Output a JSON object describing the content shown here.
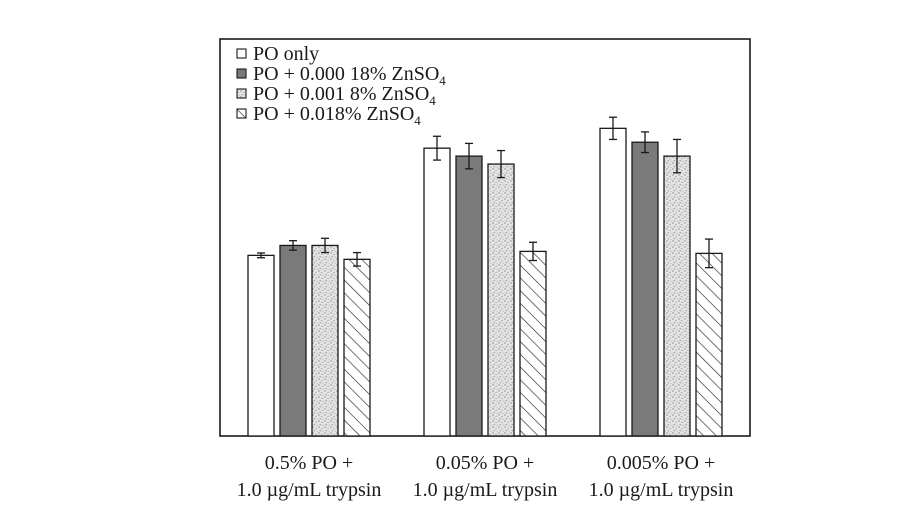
{
  "chart_data": {
    "type": "bar",
    "title": "",
    "xlabel": "",
    "ylabel": "",
    "ylim": [
      0,
      100
    ],
    "grid": false,
    "legend_placement": "top-left",
    "categories": [
      [
        "0.5% PO +",
        "1.0 µg/mL trypsin"
      ],
      [
        "0.05% PO +",
        "1.0 µg/mL trypsin"
      ],
      [
        "0.005% PO +",
        "1.0 µg/mL trypsin"
      ]
    ],
    "series": [
      {
        "name": "PO only",
        "legend_main": "PO only",
        "legend_sub": "",
        "legend_tail": "",
        "fill": "white",
        "values": [
          45.5,
          72.5,
          77.5
        ],
        "errors": [
          0.6,
          3.0,
          2.8
        ]
      },
      {
        "name": "PO + 0.000 18% ZnSO4",
        "legend_main": "PO + 0.000 18% ZnSO",
        "legend_sub": "4",
        "legend_tail": "",
        "fill": "gray",
        "values": [
          48.0,
          70.5,
          74.0
        ],
        "errors": [
          1.2,
          3.2,
          2.6
        ]
      },
      {
        "name": "PO + 0.001 8% ZnSO4",
        "legend_main": "PO + 0.001 8% ZnSO",
        "legend_sub": "4",
        "legend_tail": "",
        "fill": "stipple",
        "values": [
          48.0,
          68.5,
          70.5
        ],
        "errors": [
          1.8,
          3.4,
          4.2
        ]
      },
      {
        "name": "PO + 0.018% ZnSO4",
        "legend_main": "PO + 0.018% ZnSO",
        "legend_sub": "4",
        "legend_tail": "",
        "fill": "hatch",
        "values": [
          44.5,
          46.5,
          46.0
        ],
        "errors": [
          1.7,
          2.3,
          3.6
        ]
      }
    ]
  },
  "colors": {
    "axis": "#1a1a1a",
    "gray_fill": "#7a7a7a",
    "stipple_bg": "#e3e3e3",
    "stipple_dot": "#8c8c8c",
    "hatch": "#2a2a2a"
  }
}
